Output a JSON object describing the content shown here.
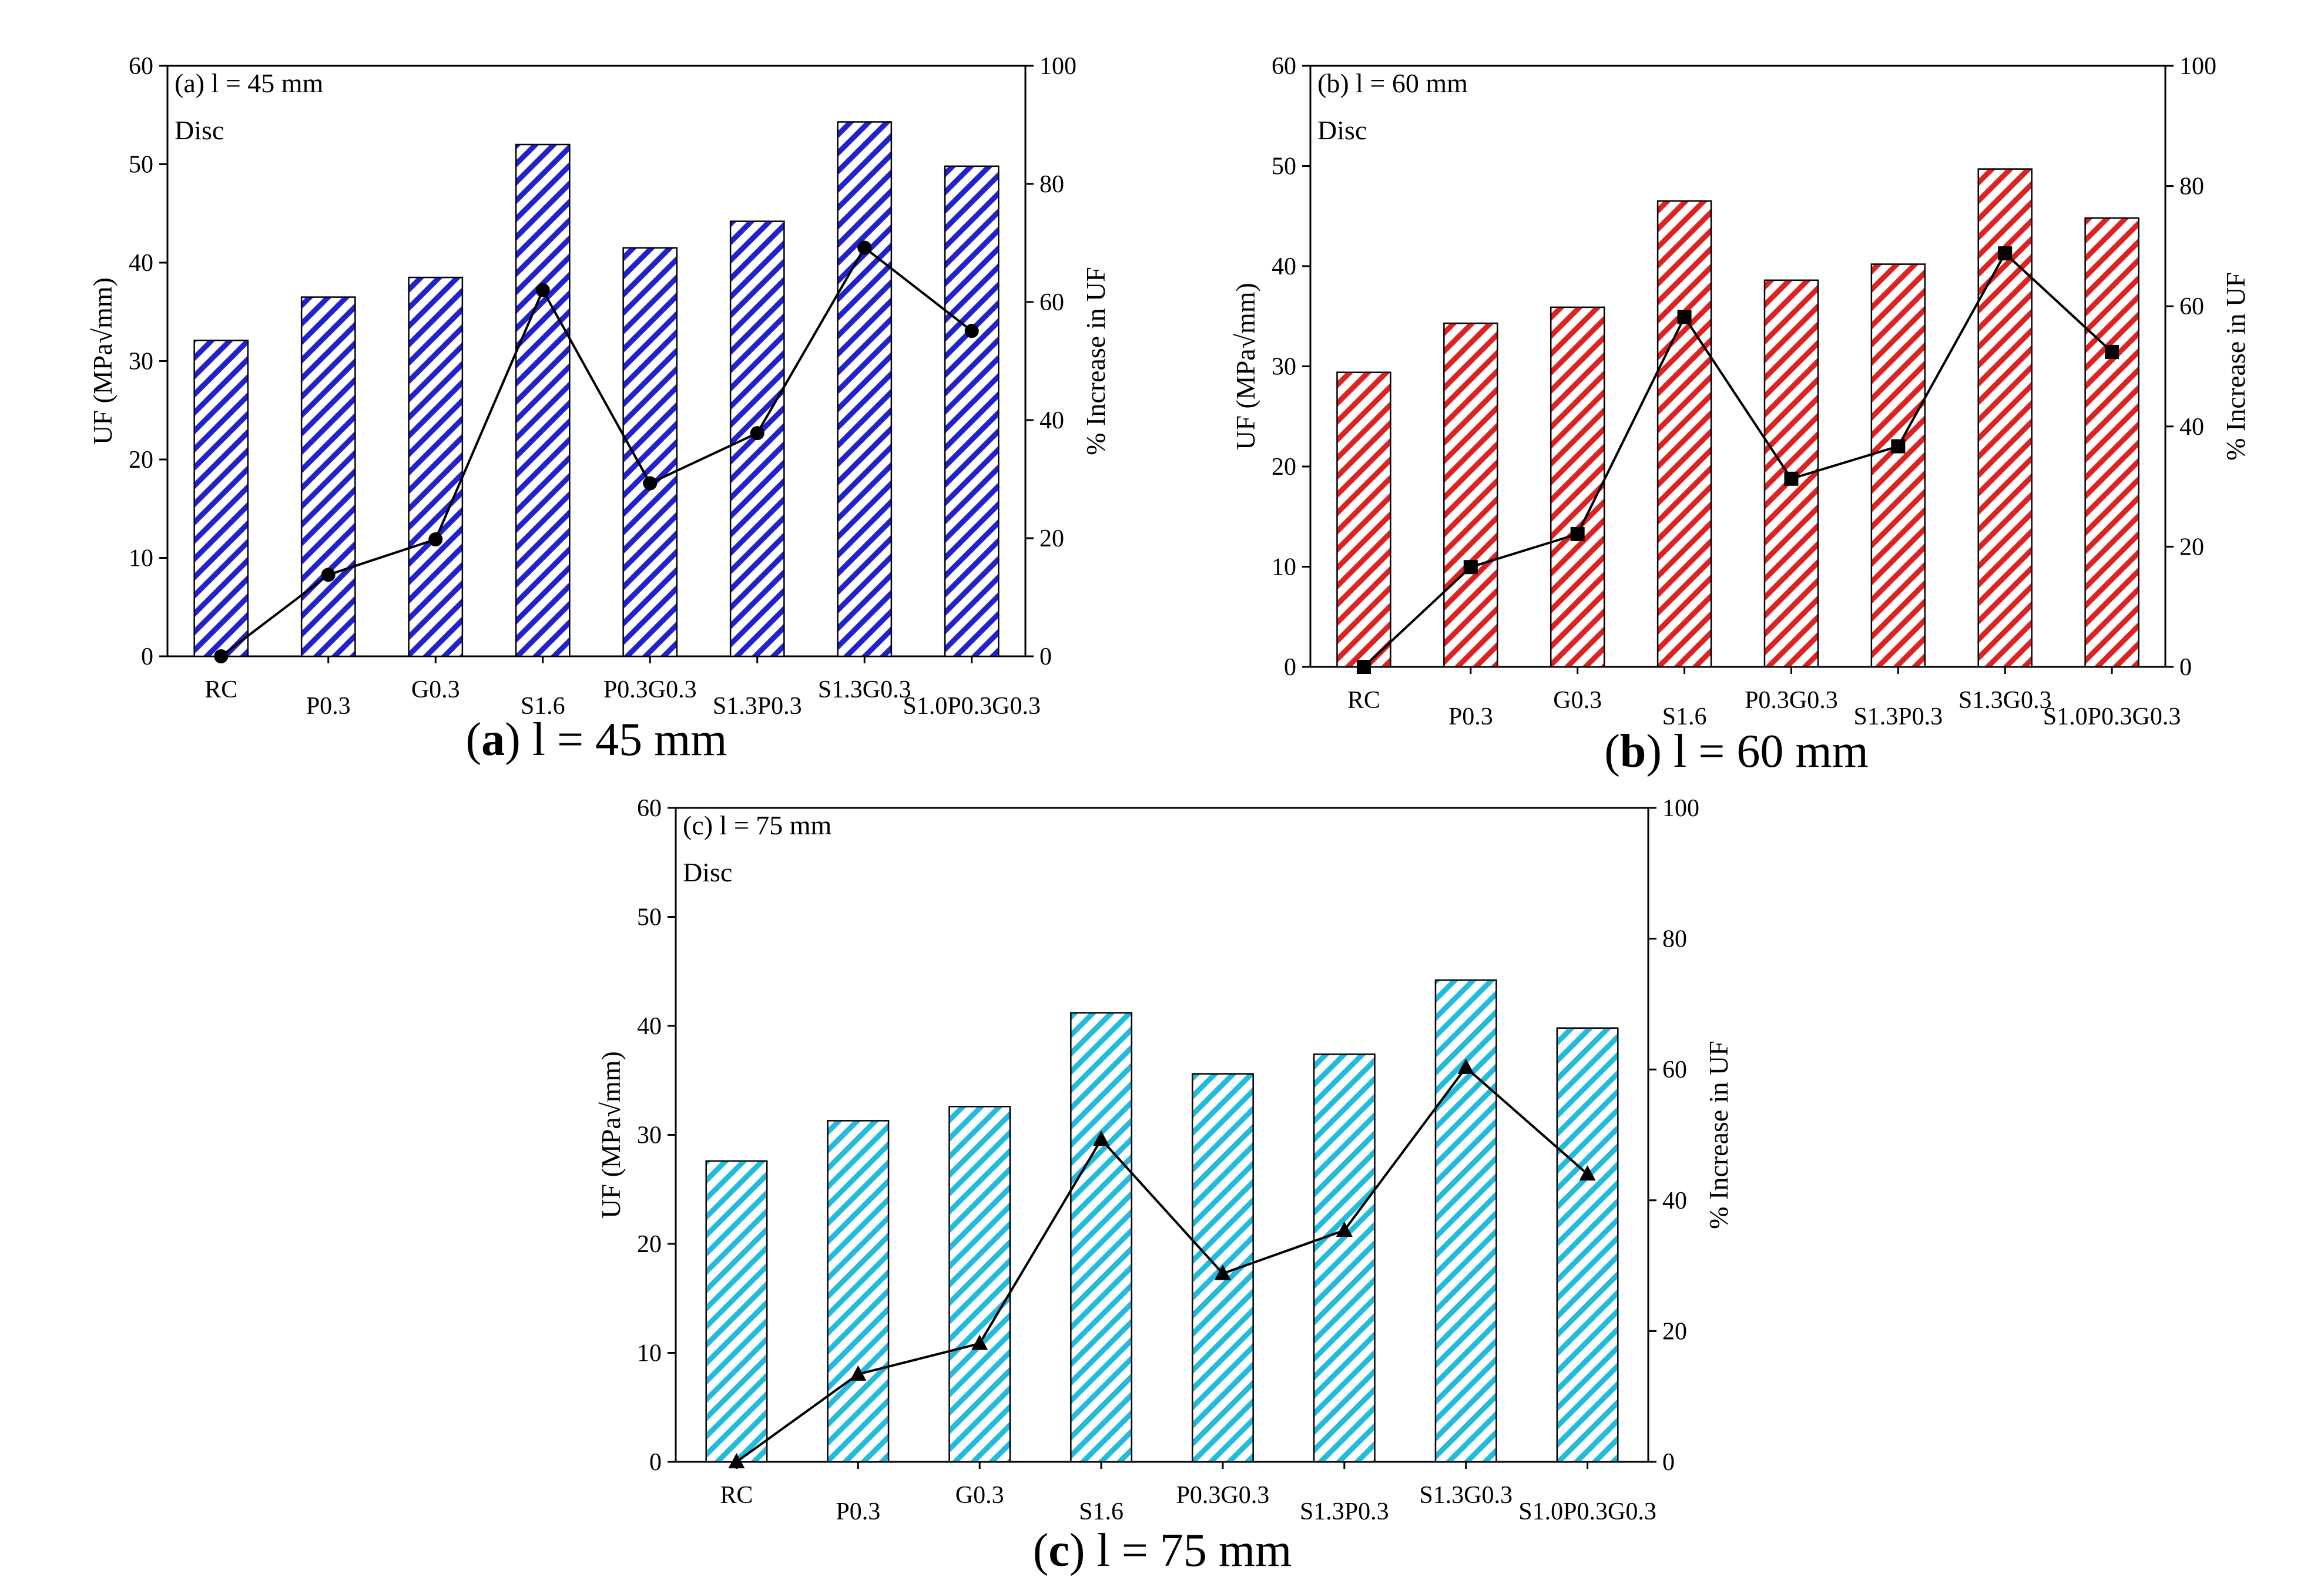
{
  "chart_data": [
    {
      "type": "bar",
      "panel": "a",
      "panel_label": "(a) l = 45 mm",
      "subtitle": "Disc",
      "caption_letter": "a",
      "caption_text": "l = 45 mm",
      "bar_color": "#2222cc",
      "marker": "circle",
      "categories": [
        "RC",
        "P0.3",
        "G0.3",
        "S1.6",
        "P0.3G0.3",
        "S1.3P0.3",
        "S1.3G0.3",
        "S1.0P0.3G0.3"
      ],
      "series": [
        {
          "name": "UF",
          "axis": "left",
          "kind": "bar",
          "values": [
            32.1,
            36.5,
            38.5,
            52.0,
            41.5,
            44.2,
            54.3,
            49.8
          ]
        },
        {
          "name": "% Increase in UF",
          "axis": "right",
          "kind": "line",
          "values": [
            0,
            13.8,
            19.8,
            62.0,
            29.3,
            37.8,
            69.2,
            55.1
          ]
        }
      ],
      "ylabel": "UF (MPa√mm)",
      "y2label": "% Increase in UF",
      "ylim": [
        0,
        60
      ],
      "y2lim": [
        0,
        100
      ],
      "yticks": [
        0,
        10,
        20,
        30,
        40,
        50,
        60
      ],
      "y2ticks": [
        0,
        20,
        40,
        60,
        80,
        100
      ]
    },
    {
      "type": "bar",
      "panel": "b",
      "panel_label": "(b) l = 60 mm",
      "subtitle": "Disc",
      "caption_letter": "b",
      "caption_text": "l = 60 mm",
      "bar_color": "#dd2222",
      "marker": "square",
      "categories": [
        "RC",
        "P0.3",
        "G0.3",
        "S1.6",
        "P0.3G0.3",
        "S1.3P0.3",
        "S1.3G0.3",
        "S1.0P0.3G0.3"
      ],
      "series": [
        {
          "name": "UF",
          "axis": "left",
          "kind": "bar",
          "values": [
            29.4,
            34.3,
            35.9,
            46.5,
            38.6,
            40.2,
            49.7,
            44.8
          ]
        },
        {
          "name": "% Increase in UF",
          "axis": "right",
          "kind": "line",
          "values": [
            0,
            16.6,
            22.1,
            58.2,
            31.3,
            36.7,
            68.8,
            52.4
          ]
        }
      ],
      "ylabel": "UF (MPa√mm)",
      "y2label": "% Increase in UF",
      "ylim": [
        0,
        60
      ],
      "y2lim": [
        0,
        100
      ],
      "yticks": [
        0,
        10,
        20,
        30,
        40,
        50,
        60
      ],
      "y2ticks": [
        0,
        20,
        40,
        60,
        80,
        100
      ]
    },
    {
      "type": "bar",
      "panel": "c",
      "panel_label": "(c) l = 75 mm",
      "subtitle": "Disc",
      "caption_letter": "c",
      "caption_text": "l = 75 mm",
      "bar_color": "#22bbdd",
      "marker": "triangle",
      "categories": [
        "RC",
        "P0.3",
        "G0.3",
        "S1.6",
        "P0.3G0.3",
        "S1.3P0.3",
        "S1.3G0.3",
        "S1.0P0.3G0.3"
      ],
      "series": [
        {
          "name": "UF",
          "axis": "left",
          "kind": "bar",
          "values": [
            27.6,
            31.3,
            32.6,
            41.2,
            35.6,
            37.4,
            44.2,
            39.8
          ]
        },
        {
          "name": "% Increase in UF",
          "axis": "right",
          "kind": "line",
          "values": [
            0,
            13.4,
            18.1,
            49.3,
            28.8,
            35.4,
            60.3,
            44.0
          ]
        }
      ],
      "ylabel": "UF (MPa√mm)",
      "y2label": "% Increase in UF",
      "ylim": [
        0,
        60
      ],
      "y2lim": [
        0,
        100
      ],
      "yticks": [
        0,
        10,
        20,
        30,
        40,
        50,
        60
      ],
      "y2ticks": [
        0,
        20,
        40,
        60,
        80,
        100
      ]
    }
  ]
}
